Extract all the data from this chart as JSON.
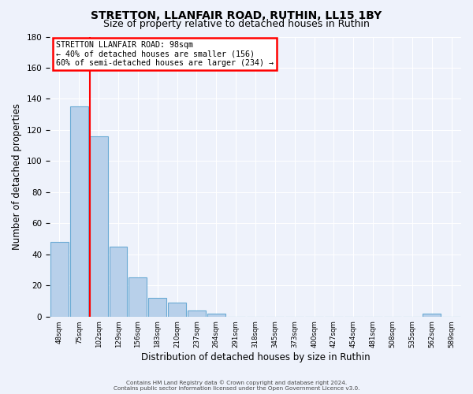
{
  "title": "STRETTON, LLANFAIR ROAD, RUTHIN, LL15 1BY",
  "subtitle": "Size of property relative to detached houses in Ruthin",
  "xlabel": "Distribution of detached houses by size in Ruthin",
  "ylabel": "Number of detached properties",
  "bar_values": [
    48,
    135,
    116,
    45,
    25,
    12,
    9,
    4,
    2,
    0,
    0,
    0,
    0,
    0,
    0,
    0,
    0,
    0,
    0,
    2,
    0
  ],
  "bin_labels": [
    "48sqm",
    "75sqm",
    "102sqm",
    "129sqm",
    "156sqm",
    "183sqm",
    "210sqm",
    "237sqm",
    "264sqm",
    "291sqm",
    "318sqm",
    "345sqm",
    "373sqm",
    "400sqm",
    "427sqm",
    "454sqm",
    "481sqm",
    "508sqm",
    "535sqm",
    "562sqm",
    "589sqm"
  ],
  "bar_color": "#b8d0ea",
  "bar_edge_color": "#6aaad4",
  "red_line_x": 2,
  "n_bins": 21,
  "ylim": [
    0,
    180
  ],
  "yticks": [
    0,
    20,
    40,
    60,
    80,
    100,
    120,
    140,
    160,
    180
  ],
  "annotation_line1": "STRETTON LLANFAIR ROAD: 98sqm",
  "annotation_line2": "← 40% of detached houses are smaller (156)",
  "annotation_line3": "60% of semi-detached houses are larger (234) →",
  "footer_line1": "Contains HM Land Registry data © Crown copyright and database right 2024.",
  "footer_line2": "Contains public sector information licensed under the Open Government Licence v3.0.",
  "background_color": "#eef2fb",
  "grid_color": "#ffffff",
  "title_fontsize": 10,
  "subtitle_fontsize": 9,
  "xlabel_fontsize": 8.5,
  "ylabel_fontsize": 8.5
}
